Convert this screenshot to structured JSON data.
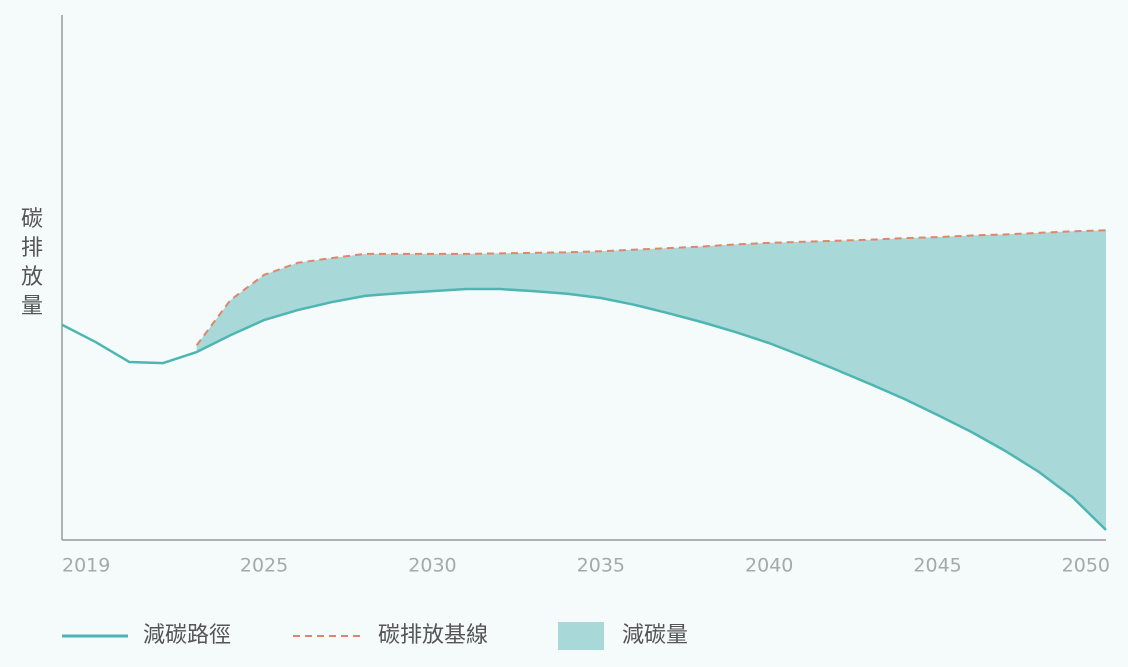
{
  "chart_data": {
    "type": "line",
    "y_label": "碳排放量",
    "x": [
      2019,
      2020,
      2021,
      2022,
      2023,
      2024,
      2025,
      2026,
      2027,
      2028,
      2029,
      2030,
      2031,
      2032,
      2033,
      2034,
      2035,
      2036,
      2037,
      2038,
      2039,
      2040,
      2041,
      2042,
      2043,
      2044,
      2045,
      2046,
      2047,
      2048,
      2049,
      2050
    ],
    "xlim": [
      2019,
      2050
    ],
    "xticks": [
      2019,
      2025,
      2030,
      2035,
      2040,
      2045,
      2050
    ],
    "ylim": [
      0,
      100
    ],
    "series": [
      {
        "name": "減碳路徑",
        "color": "#4db6b3",
        "style": "solid",
        "values": [
          41,
          37.7,
          33.9,
          33.7,
          35.8,
          39,
          41.9,
          43.8,
          45.3,
          46.5,
          47,
          47.4,
          47.8,
          47.8,
          47.4,
          46.9,
          46.1,
          44.8,
          43.2,
          41.5,
          39.6,
          37.5,
          35,
          32.4,
          29.7,
          26.9,
          23.8,
          20.6,
          17,
          13,
          8.2,
          1.9
        ]
      },
      {
        "name": "碳排放基線",
        "color": "#e0866a",
        "style": "dashed",
        "values": [
          null,
          null,
          null,
          null,
          37.1,
          45.7,
          50.5,
          52.8,
          53.7,
          54.5,
          54.5,
          54.5,
          54.5,
          54.6,
          54.7,
          54.8,
          55,
          55.3,
          55.6,
          55.9,
          56.3,
          56.6,
          56.8,
          57,
          57.2,
          57.5,
          57.7,
          58,
          58.2,
          58.5,
          58.8,
          59
        ]
      }
    ],
    "area": {
      "name": "減碳量",
      "color": "#a8d8d8"
    }
  }
}
